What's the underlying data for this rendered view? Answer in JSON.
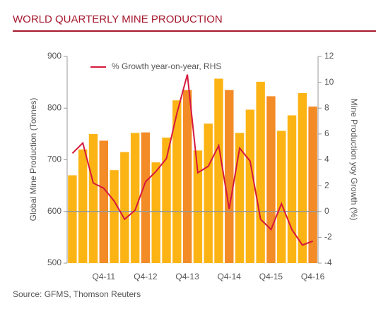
{
  "chart_data": {
    "type": "bar",
    "title": "WORLD QUARTERLY MINE PRODUCTION",
    "source": "Source: GFMS, Thomson Reuters",
    "ylabel": "Global Mine Production (Tonnes)",
    "y2label": "Mine Production yoy Growth (%)",
    "categories": [
      null,
      null,
      null,
      "Q4-11",
      null,
      null,
      null,
      "Q4-12",
      null,
      null,
      null,
      "Q4-13",
      null,
      null,
      null,
      "Q4-14",
      null,
      null,
      null,
      "Q4-15",
      null,
      null,
      null,
      "Q4-16"
    ],
    "ylim": [
      500,
      900
    ],
    "yticks": [
      500,
      600,
      700,
      800,
      900
    ],
    "y2lim": [
      -4,
      12
    ],
    "y2ticks": [
      -4,
      -2,
      0,
      2,
      4,
      6,
      8,
      10,
      12
    ],
    "legend": "top-left",
    "series": [
      {
        "colors": [
          "#fcb415",
          "#fcb415",
          "#fcb415",
          "#f38b26",
          "#fcb415",
          "#fcb415",
          "#fcb415",
          "#f38b26",
          "#fcb415",
          "#fcb415",
          "#fcb415",
          "#f38b26",
          "#fcb415",
          "#fcb415",
          "#fcb415",
          "#f38b26",
          "#fcb415",
          "#fcb415",
          "#fcb415",
          "#f38b26",
          "#fcb415",
          "#fcb415",
          "#fcb415",
          "#f38b26"
        ],
        "values": [
          670,
          720,
          750,
          737,
          680,
          715,
          752,
          753,
          695,
          743,
          815,
          835,
          718,
          770,
          857,
          835,
          752,
          797,
          851,
          823,
          756,
          786,
          829,
          803
        ]
      },
      {
        "name": "% Growth year-on-year, RHS",
        "color": "#d6183c",
        "axis": "y2",
        "type": "line",
        "values": [
          4.5,
          5.3,
          2.2,
          1.8,
          0.8,
          -0.6,
          0.1,
          2.3,
          3.1,
          4.1,
          7.6,
          10.6,
          3.0,
          3.5,
          5.1,
          0.2,
          4.9,
          3.9,
          -0.6,
          -1.4,
          0.6,
          -1.4,
          -2.6,
          -2.3
        ]
      }
    ]
  }
}
